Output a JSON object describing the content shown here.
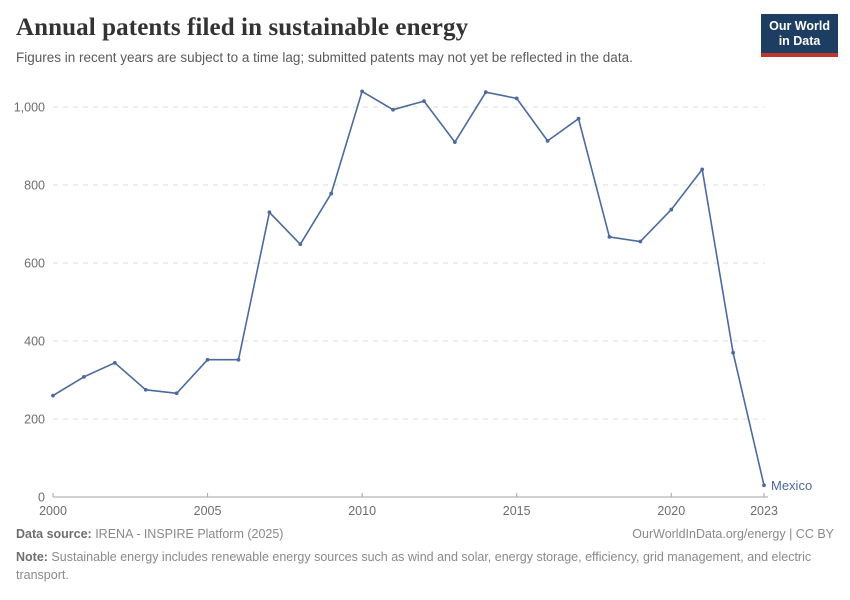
{
  "header": {
    "title": "Annual patents filed in sustainable energy",
    "subtitle": "Figures in recent years are subject to a time lag; submitted patents may not yet be reflected in the data."
  },
  "logo": {
    "line1": "Our World",
    "line2": "in Data",
    "bg_color": "#1d3d63",
    "accent_color": "#c0362c"
  },
  "chart_data": {
    "type": "line",
    "title": "Annual patents filed in sustainable energy",
    "xlabel": "",
    "ylabel": "",
    "xlim": [
      2000,
      2023
    ],
    "ylim": [
      0,
      1050
    ],
    "grid": "horizontal-dashed",
    "legend_position": "end-of-line-label",
    "xticks": [
      2000,
      2005,
      2010,
      2015,
      2020,
      2023
    ],
    "xtick_labels": [
      "2000",
      "2005",
      "2010",
      "2015",
      "2020",
      "2023"
    ],
    "yticks": [
      0,
      200,
      400,
      600,
      800,
      1000
    ],
    "ytick_labels": [
      "0",
      "200",
      "400",
      "600",
      "800",
      "1,000"
    ],
    "x": [
      2000,
      2001,
      2002,
      2003,
      2004,
      2005,
      2006,
      2007,
      2008,
      2009,
      2010,
      2011,
      2012,
      2013,
      2014,
      2015,
      2016,
      2017,
      2018,
      2019,
      2020,
      2021,
      2022,
      2023
    ],
    "series": [
      {
        "name": "Mexico",
        "color": "#4c6a9d",
        "values": [
          260,
          308,
          344,
          275,
          266,
          352,
          352,
          730,
          648,
          778,
          1040,
          993,
          1015,
          910,
          1038,
          1022,
          913,
          970,
          667,
          655,
          737,
          840,
          370,
          30
        ]
      }
    ],
    "axis_color": "#a3a3a3",
    "gridline_color": "#dcdcdc",
    "tick_label_color": "#6e6e6e"
  },
  "footer": {
    "datasource_label": "Data source:",
    "datasource_value": " IRENA - INSPIRE Platform (2025)",
    "origin_link": "OurWorldInData.org/energy | CC BY",
    "note_label": "Note:",
    "note_value": " Sustainable energy includes renewable energy sources such as wind and solar, energy storage, efficiency, grid management, and electric transport."
  }
}
